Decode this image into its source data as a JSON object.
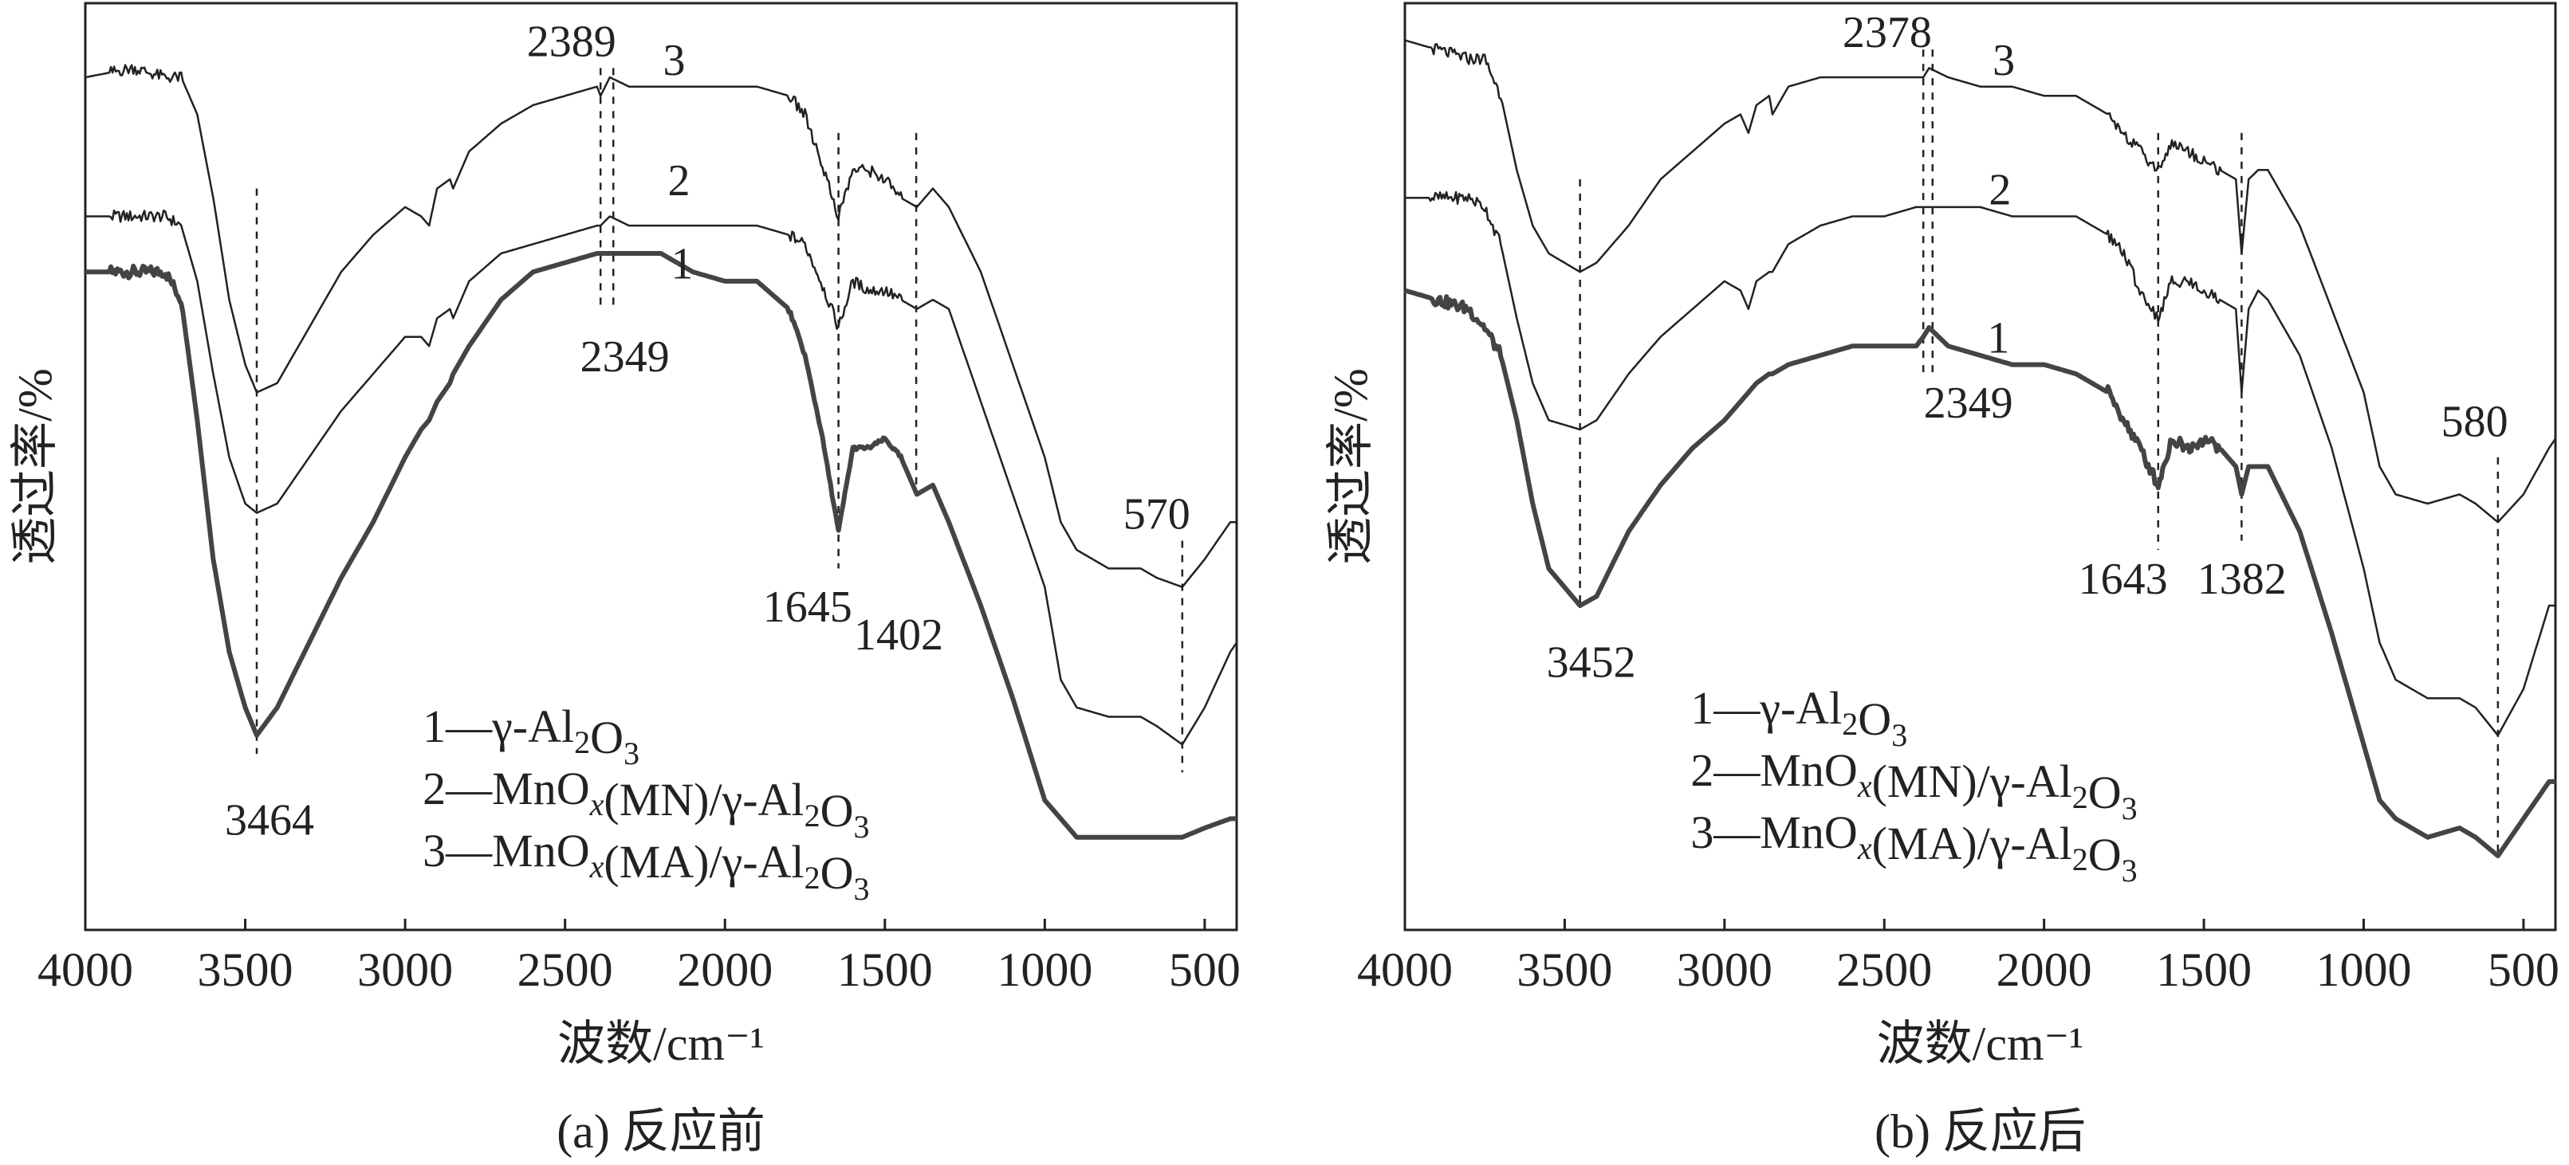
{
  "chart_data": [
    {
      "type": "line",
      "caption": "(a) 反应前",
      "xlabel": "波数/cm⁻¹",
      "ylabel": "透过率/%",
      "xlim": [
        4000,
        400
      ],
      "ylim": [
        0,
        100
      ],
      "y_units": "arbitrary (relative transmittance)",
      "xticks": [
        "4000",
        "3500",
        "3000",
        "2500",
        "2000",
        "1500",
        "1000",
        "500"
      ],
      "grid": false,
      "x": [
        4000,
        3850,
        3750,
        3700,
        3650,
        3600,
        3550,
        3500,
        3464,
        3400,
        3300,
        3200,
        3100,
        3000,
        2950,
        2925,
        2900,
        2860,
        2850,
        2800,
        2700,
        2600,
        2500,
        2400,
        2389,
        2360,
        2300,
        2200,
        2100,
        2000,
        1900,
        1800,
        1750,
        1700,
        1645,
        1600,
        1550,
        1500,
        1450,
        1400,
        1350,
        1300,
        1200,
        1100,
        1000,
        950,
        900,
        800,
        700,
        650,
        570,
        500,
        420,
        400
      ],
      "series": [
        {
          "name": "1",
          "bold": true,
          "label": "1",
          "label_pos": [
            2134,
            72
          ],
          "values": [
            71,
            71,
            71,
            68,
            55,
            40,
            30,
            24,
            21,
            24,
            31,
            38,
            44,
            51,
            54,
            55,
            57,
            59,
            60,
            63,
            68,
            71,
            72,
            73,
            73,
            73,
            73,
            73,
            71,
            70,
            70,
            67,
            62,
            54,
            43,
            52,
            52,
            53,
            51,
            47,
            48,
            44,
            35,
            25,
            14,
            12,
            10,
            10,
            10,
            10,
            10,
            11,
            12,
            12
          ]
        },
        {
          "name": "2",
          "bold": false,
          "label": "2",
          "label_pos": [
            2144,
            81
          ],
          "values": [
            77,
            77,
            77,
            76,
            70,
            60,
            51,
            46,
            45,
            46,
            51,
            56,
            60,
            64,
            64,
            63,
            66,
            67,
            66,
            70,
            73,
            74,
            75,
            76,
            76,
            77,
            76,
            76,
            76,
            76,
            76,
            75,
            74,
            70,
            65,
            70,
            69,
            69,
            68,
            67,
            68,
            67,
            57,
            47,
            37,
            27,
            24,
            23,
            23,
            22,
            20,
            24,
            30,
            31
          ]
        },
        {
          "name": "3",
          "bold": false,
          "label": "3",
          "label_pos": [
            2159,
            94
          ],
          "values": [
            92,
            93,
            92,
            92,
            88,
            79,
            68,
            61,
            58,
            59,
            65,
            71,
            75,
            78,
            77,
            76,
            80,
            81,
            80,
            84,
            87,
            89,
            90,
            91,
            90,
            92,
            91,
            91,
            91,
            91,
            91,
            90,
            88,
            83,
            77,
            82,
            82,
            81,
            79,
            78,
            80,
            78,
            71,
            61,
            51,
            44,
            41,
            39,
            39,
            38,
            37,
            40,
            44,
            44
          ]
        }
      ],
      "marker_lines": [
        {
          "x": 3464,
          "y": [
            80,
            19
          ]
        },
        {
          "x": 2389,
          "y": [
            93,
            67
          ]
        },
        {
          "x": 2349,
          "y": [
            93,
            67
          ]
        },
        {
          "x": 1645,
          "y": [
            86,
            39
          ]
        },
        {
          "x": 1402,
          "y": [
            86,
            47
          ]
        },
        {
          "x": 570,
          "y": [
            42,
            17
          ]
        }
      ],
      "annotations": [
        {
          "text": "2389",
          "pos": [
            2480,
            96
          ]
        },
        {
          "text": "2349",
          "pos": [
            2313,
            62
          ]
        },
        {
          "text": "3464",
          "pos": [
            3424,
            12
          ]
        },
        {
          "text": "1645",
          "pos": [
            1742,
            35
          ]
        },
        {
          "text": "1402",
          "pos": [
            1457,
            32
          ]
        },
        {
          "text": "570",
          "pos": [
            650,
            45
          ]
        }
      ],
      "legend": {
        "anchor": [
          2945,
          22
        ],
        "entries": [
          [
            [
              "1—γ-Al",
              ""
            ],
            [
              "2",
              "sub"
            ],
            [
              "O",
              ""
            ],
            [
              "3",
              "sub"
            ]
          ],
          [
            [
              "2—MnO",
              ""
            ],
            [
              "x",
              "subi"
            ],
            [
              "(MN)/γ-Al",
              ""
            ],
            [
              "2",
              "sub"
            ],
            [
              "O",
              ""
            ],
            [
              "3",
              "sub"
            ]
          ],
          [
            [
              "3—MnO",
              ""
            ],
            [
              "x",
              "subi"
            ],
            [
              "(MA)/γ-Al",
              ""
            ],
            [
              "2",
              "sub"
            ],
            [
              "O",
              ""
            ],
            [
              "3",
              "sub"
            ]
          ]
        ]
      }
    },
    {
      "type": "line",
      "caption": "(b) 反应后",
      "xlabel": "波数/cm⁻¹",
      "ylabel": "透过率/%",
      "xlim": [
        4000,
        400
      ],
      "ylim": [
        0,
        100
      ],
      "y_units": "arbitrary (relative transmittance)",
      "xticks": [
        "4000",
        "3500",
        "3000",
        "2500",
        "2000",
        "1500",
        "1000",
        "500"
      ],
      "grid": false,
      "x": [
        4000,
        3900,
        3800,
        3750,
        3700,
        3650,
        3600,
        3550,
        3452,
        3400,
        3300,
        3200,
        3100,
        3000,
        2950,
        2925,
        2900,
        2860,
        2850,
        2800,
        2700,
        2600,
        2500,
        2400,
        2378,
        2360,
        2300,
        2200,
        2100,
        2000,
        1900,
        1800,
        1750,
        1700,
        1643,
        1600,
        1550,
        1500,
        1450,
        1400,
        1382,
        1360,
        1330,
        1300,
        1200,
        1100,
        1000,
        950,
        900,
        800,
        700,
        650,
        580,
        500,
        420,
        400
      ],
      "series": [
        {
          "name": "1",
          "bold": true,
          "label": "1",
          "label_pos": [
            2143,
            64
          ],
          "values": [
            69,
            68,
            67,
            65,
            62,
            55,
            46,
            39,
            35,
            36,
            43,
            48,
            52,
            55,
            57,
            58,
            59,
            60,
            60,
            61,
            62,
            63,
            63,
            63,
            64,
            65,
            63,
            62,
            61,
            61,
            60,
            58,
            55,
            52,
            48,
            53,
            52,
            53,
            52,
            50,
            47,
            50,
            50,
            50,
            43,
            32,
            20,
            14,
            12,
            10,
            11,
            10,
            8,
            12,
            16,
            16
          ]
        },
        {
          "name": "2",
          "bold": false,
          "label": "2",
          "label_pos": [
            2138,
            80
          ],
          "values": [
            79,
            79,
            79,
            78,
            74,
            66,
            59,
            55,
            54,
            55,
            60,
            64,
            67,
            70,
            69,
            67,
            70,
            71,
            71,
            74,
            76,
            77,
            77,
            78,
            78,
            78,
            78,
            78,
            77,
            77,
            77,
            75,
            73,
            69,
            66,
            70,
            70,
            69,
            68,
            67,
            58,
            67,
            69,
            68,
            62,
            52,
            39,
            31,
            27,
            25,
            25,
            24,
            21,
            26,
            35,
            35
          ]
        },
        {
          "name": "3",
          "bold": false,
          "label": "3",
          "label_pos": [
            2126,
            94
          ],
          "values": [
            96,
            95,
            94,
            94,
            90,
            82,
            76,
            73,
            71,
            72,
            76,
            81,
            84,
            87,
            88,
            86,
            89,
            90,
            88,
            91,
            92,
            92,
            92,
            92,
            92,
            93,
            92,
            91,
            91,
            90,
            90,
            88,
            86,
            84,
            82,
            85,
            84,
            83,
            82,
            81,
            73,
            81,
            82,
            82,
            76,
            67,
            58,
            50,
            47,
            46,
            47,
            46,
            44,
            47,
            52,
            53
          ]
        }
      ],
      "marker_lines": [
        {
          "x": 3452,
          "y": [
            81,
            35
          ]
        },
        {
          "x": 2378,
          "y": [
            95,
            60
          ]
        },
        {
          "x": 2349,
          "y": [
            95,
            60
          ]
        },
        {
          "x": 1643,
          "y": [
            86,
            41
          ]
        },
        {
          "x": 1382,
          "y": [
            86,
            42
          ]
        },
        {
          "x": 580,
          "y": [
            51,
            8
          ]
        }
      ],
      "annotations": [
        {
          "text": "2378",
          "pos": [
            2491,
            97
          ]
        },
        {
          "text": "2349",
          "pos": [
            2237,
            57
          ]
        },
        {
          "text": "3452",
          "pos": [
            3417,
            29
          ]
        },
        {
          "text": "1643",
          "pos": [
            1753,
            38
          ]
        },
        {
          "text": "1382",
          "pos": [
            1381,
            38
          ]
        },
        {
          "text": "580",
          "pos": [
            653,
            55
          ]
        }
      ],
      "legend": {
        "anchor": [
          3106,
          24
        ],
        "entries": [
          [
            [
              "1—γ-Al",
              ""
            ],
            [
              "2",
              "sub"
            ],
            [
              "O",
              ""
            ],
            [
              "3",
              "sub"
            ]
          ],
          [
            [
              "2—MnO",
              ""
            ],
            [
              "x",
              "subi"
            ],
            [
              "(MN)/γ-Al",
              ""
            ],
            [
              "2",
              "sub"
            ],
            [
              "O",
              ""
            ],
            [
              "3",
              "sub"
            ]
          ],
          [
            [
              "3—MnO",
              ""
            ],
            [
              "x",
              "subi"
            ],
            [
              "(MA)/γ-Al",
              ""
            ],
            [
              "2",
              "sub"
            ],
            [
              "O",
              ""
            ],
            [
              "3",
              "sub"
            ]
          ]
        ]
      }
    }
  ]
}
